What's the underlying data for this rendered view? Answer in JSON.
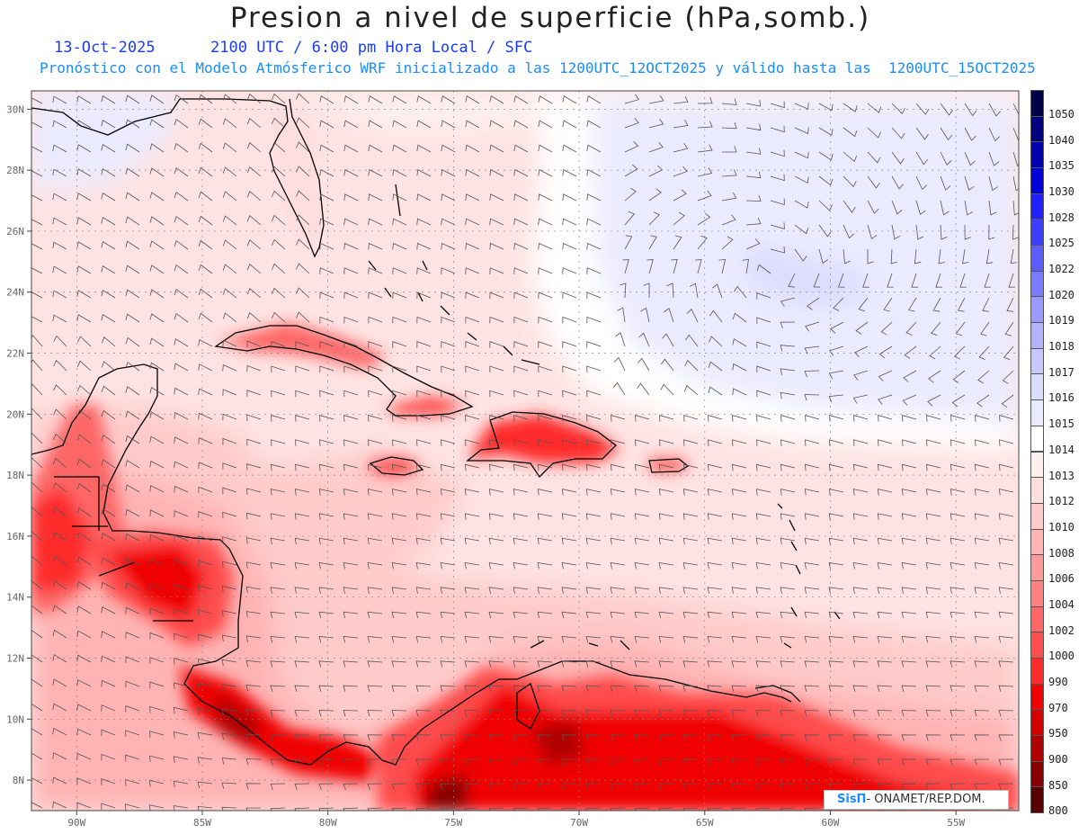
{
  "header": {
    "title": "Presion a nivel de superficie (hPa,somb.)",
    "date": "13-Oct-2025",
    "time_info": "2100 UTC / 6:00 pm Hora Local / SFC",
    "model_info": "Pronóstico con el Modelo Atmósferico WRF inicializado a las 1200UTC_12OCT2025 y válido hasta las  1200UTC_15OCT2025"
  },
  "axes": {
    "lat_labels": [
      "30N",
      "28N",
      "26N",
      "24N",
      "22N",
      "20N",
      "18N",
      "16N",
      "14N",
      "12N",
      "10N",
      "8N"
    ],
    "lat_values": [
      30,
      28,
      26,
      24,
      22,
      20,
      18,
      16,
      14,
      12,
      10,
      8
    ],
    "lon_labels": [
      "90W",
      "85W",
      "80W",
      "75W",
      "70W",
      "65W",
      "60W",
      "55W"
    ],
    "lon_values": [
      -90,
      -85,
      -80,
      -75,
      -70,
      -65,
      -60,
      -55
    ],
    "lat_range": [
      7,
      30.6
    ],
    "lon_range": [
      -91.8,
      -52.5
    ]
  },
  "colorbar": {
    "labels": [
      "1050",
      "1040",
      "1035",
      "1030",
      "1028",
      "1025",
      "1022",
      "1020",
      "1019",
      "1018",
      "1017",
      "1016",
      "1015",
      "1014",
      "1013",
      "1012",
      "1010",
      "1008",
      "1006",
      "1004",
      "1002",
      "1000",
      "990",
      "970",
      "950",
      "900",
      "850",
      "800"
    ],
    "colors": [
      "#00004a",
      "#000080",
      "#0000b0",
      "#0000dd",
      "#1f1fff",
      "#3d3dff",
      "#5c5cff",
      "#7a7aff",
      "#9999ff",
      "#b3b3ff",
      "#c8c8ff",
      "#dcdcff",
      "#ebebff",
      "#ffffff",
      "#ffefef",
      "#ffdede",
      "#ffcaca",
      "#ffb3b3",
      "#ff9a9a",
      "#ff8080",
      "#ff6666",
      "#ff4c4c",
      "#ff2a2a",
      "#f00000",
      "#d40000",
      "#b00000",
      "#880000",
      "#5a0000"
    ]
  },
  "credit": {
    "logo": "SisΠ",
    "text": "- ONAMET/REP.DOM."
  },
  "legend_note": "wind barbs (kt)"
}
